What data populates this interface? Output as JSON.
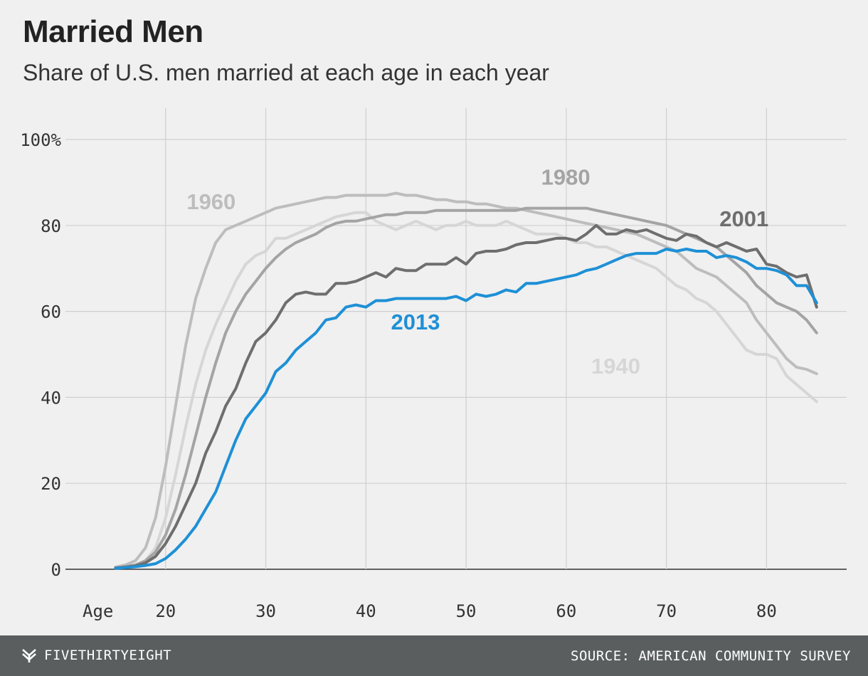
{
  "header": {
    "title": "Married Men",
    "subtitle": "Share of U.S. men married at each age in each year"
  },
  "footer": {
    "brand": "FIVETHIRTYEIGHT",
    "source": "SOURCE: AMERICAN COMMUNITY SURVEY",
    "logo_icon": "fivethirtyeight-logo-icon"
  },
  "chart_data": {
    "type": "line",
    "title": "Married Men",
    "subtitle": "Share of U.S. men married at each age in each year",
    "xlabel": "Age",
    "ylabel": "",
    "xlim": [
      10,
      88
    ],
    "ylim": [
      0,
      100
    ],
    "x_ticks": [
      20,
      30,
      40,
      50,
      60,
      70,
      80
    ],
    "y_ticks": [
      0,
      20,
      40,
      60,
      80,
      100
    ],
    "y_tick_labels": [
      "0",
      "20",
      "40",
      "60",
      "80",
      "100%"
    ],
    "grid": true,
    "series": [
      {
        "name": "1940",
        "color": "#d6d6d6",
        "label_x": 62.5,
        "label_y": 45.5,
        "x": [
          15,
          16,
          17,
          18,
          19,
          20,
          21,
          22,
          23,
          24,
          25,
          26,
          27,
          28,
          29,
          30,
          31,
          32,
          33,
          34,
          35,
          36,
          37,
          38,
          39,
          40,
          41,
          42,
          43,
          44,
          45,
          46,
          47,
          48,
          49,
          50,
          51,
          52,
          53,
          54,
          55,
          56,
          57,
          58,
          59,
          60,
          61,
          62,
          63,
          64,
          65,
          66,
          67,
          68,
          69,
          70,
          71,
          72,
          73,
          74,
          75,
          76,
          77,
          78,
          79,
          80,
          81,
          82,
          83,
          84,
          85
        ],
        "y": [
          0.3,
          0.6,
          1,
          2,
          5,
          12,
          22,
          33,
          43,
          51,
          57,
          62,
          67,
          71,
          73,
          74,
          77,
          77,
          78,
          79,
          80,
          81,
          82,
          82.5,
          83,
          83,
          81,
          80,
          79,
          80,
          81,
          80,
          79,
          80,
          80,
          81,
          80,
          80,
          80,
          81,
          80,
          79,
          78,
          78,
          78,
          77,
          76,
          76,
          75,
          75,
          74,
          73,
          72,
          71,
          70,
          68,
          66,
          65,
          63,
          62,
          60,
          57,
          54,
          51,
          50,
          50,
          49,
          45,
          43,
          41,
          39
        ]
      },
      {
        "name": "1960",
        "color": "#bdbdbd",
        "label_x": 22.1,
        "label_y": 83.8,
        "x": [
          15,
          16,
          17,
          18,
          19,
          20,
          21,
          22,
          23,
          24,
          25,
          26,
          27,
          28,
          29,
          30,
          31,
          32,
          33,
          34,
          35,
          36,
          37,
          38,
          39,
          40,
          41,
          42,
          43,
          44,
          45,
          46,
          47,
          48,
          49,
          50,
          51,
          52,
          53,
          54,
          55,
          56,
          57,
          58,
          59,
          60,
          61,
          62,
          63,
          64,
          65,
          66,
          67,
          68,
          69,
          70,
          71,
          72,
          73,
          74,
          75,
          76,
          77,
          78,
          79,
          80,
          81,
          82,
          83,
          84,
          85
        ],
        "y": [
          0.5,
          1,
          2,
          5,
          12,
          24,
          38,
          52,
          63,
          70,
          76,
          79,
          80,
          81,
          82,
          83,
          84,
          84.5,
          85,
          85.5,
          86,
          86.5,
          86.5,
          87,
          87,
          87,
          87,
          87,
          87.5,
          87,
          87,
          86.5,
          86,
          86,
          85.5,
          85.5,
          85,
          85,
          84.5,
          84,
          84,
          83.5,
          83,
          82.5,
          82,
          81.5,
          81,
          80.5,
          80,
          79.5,
          79,
          78.5,
          78,
          77,
          76,
          75,
          74,
          72,
          70,
          69,
          68,
          66,
          64,
          62,
          58,
          55,
          52,
          49,
          47,
          46.5,
          45.5
        ]
      },
      {
        "name": "1980",
        "color": "#a4a4a4",
        "label_x": 57.5,
        "label_y": 89.5,
        "x": [
          15,
          16,
          17,
          18,
          19,
          20,
          21,
          22,
          23,
          24,
          25,
          26,
          27,
          28,
          29,
          30,
          31,
          32,
          33,
          34,
          35,
          36,
          37,
          38,
          39,
          40,
          41,
          42,
          43,
          44,
          45,
          46,
          47,
          48,
          49,
          50,
          51,
          52,
          53,
          54,
          55,
          56,
          57,
          58,
          59,
          60,
          61,
          62,
          63,
          64,
          65,
          66,
          67,
          68,
          69,
          70,
          71,
          72,
          73,
          74,
          75,
          76,
          77,
          78,
          79,
          80,
          81,
          82,
          83,
          84,
          85
        ],
        "y": [
          0.3,
          0.6,
          1,
          2,
          4,
          8,
          14,
          22,
          31,
          40,
          48,
          55,
          60,
          64,
          67,
          70,
          72.5,
          74.5,
          76,
          77,
          78,
          79.5,
          80.5,
          81,
          81,
          81.5,
          82,
          82.5,
          82.5,
          83,
          83,
          83,
          83.5,
          83.5,
          83.5,
          83.5,
          83.5,
          83.5,
          83.5,
          83.5,
          83.5,
          84,
          84,
          84,
          84,
          84,
          84,
          84,
          83.5,
          83,
          82.5,
          82,
          81.5,
          81,
          80.5,
          80,
          79,
          78,
          77,
          76,
          75,
          73,
          71,
          69,
          66,
          64,
          62,
          61,
          60,
          58,
          55
        ]
      },
      {
        "name": "2001",
        "color": "#6e6e6e",
        "label_x": 75.3,
        "label_y": 79.8,
        "x": [
          15,
          16,
          17,
          18,
          19,
          20,
          21,
          22,
          23,
          24,
          25,
          26,
          27,
          28,
          29,
          30,
          31,
          32,
          33,
          34,
          35,
          36,
          37,
          38,
          39,
          40,
          41,
          42,
          43,
          44,
          45,
          46,
          47,
          48,
          49,
          50,
          51,
          52,
          53,
          54,
          55,
          56,
          57,
          58,
          59,
          60,
          61,
          62,
          63,
          64,
          65,
          66,
          67,
          68,
          69,
          70,
          71,
          72,
          73,
          74,
          75,
          76,
          77,
          78,
          79,
          80,
          81,
          82,
          83,
          84,
          85
        ],
        "y": [
          0.3,
          0.5,
          0.8,
          1.5,
          3,
          6,
          10,
          15,
          20,
          27,
          32,
          38,
          42,
          48,
          53,
          55,
          58,
          62,
          64,
          64.5,
          64,
          64,
          66.5,
          66.5,
          67,
          68,
          69,
          68,
          70,
          69.5,
          69.5,
          71,
          71,
          71,
          72.5,
          71,
          73.5,
          74,
          74,
          74.5,
          75.5,
          76,
          76,
          76.5,
          77,
          77,
          76.5,
          78,
          80,
          78,
          78,
          79,
          78.5,
          79,
          78,
          77,
          76.5,
          78,
          77.5,
          76,
          75,
          76,
          75,
          74,
          74.5,
          71,
          70.5,
          69,
          68,
          68.5,
          61
        ]
      },
      {
        "name": "2013",
        "color": "#1e90d6",
        "label_x": 42.5,
        "label_y": 55.8,
        "x": [
          15,
          16,
          17,
          18,
          19,
          20,
          21,
          22,
          23,
          24,
          25,
          26,
          27,
          28,
          29,
          30,
          31,
          32,
          33,
          34,
          35,
          36,
          37,
          38,
          39,
          40,
          41,
          42,
          43,
          44,
          45,
          46,
          47,
          48,
          49,
          50,
          51,
          52,
          53,
          54,
          55,
          56,
          57,
          58,
          59,
          60,
          61,
          62,
          63,
          64,
          65,
          66,
          67,
          68,
          69,
          70,
          71,
          72,
          73,
          74,
          75,
          76,
          77,
          78,
          79,
          80,
          81,
          82,
          83,
          84,
          85
        ],
        "y": [
          0.2,
          0.4,
          0.6,
          0.9,
          1.3,
          2.5,
          4.5,
          7,
          10,
          14,
          18,
          24,
          30,
          35,
          38,
          41,
          46,
          48,
          51,
          53,
          55,
          58,
          58.5,
          61,
          61.5,
          61,
          62.5,
          62.5,
          63,
          63,
          63,
          63,
          63,
          63,
          63.5,
          62.5,
          64,
          63.5,
          64,
          65,
          64.5,
          66.5,
          66.5,
          67,
          67.5,
          68,
          68.5,
          69.5,
          70,
          71,
          72,
          73,
          73.5,
          73.5,
          73.5,
          74.5,
          74,
          74.5,
          74,
          74,
          72.5,
          73,
          72.5,
          71.5,
          70,
          70,
          69.5,
          68.5,
          66,
          66,
          62
        ]
      }
    ]
  }
}
